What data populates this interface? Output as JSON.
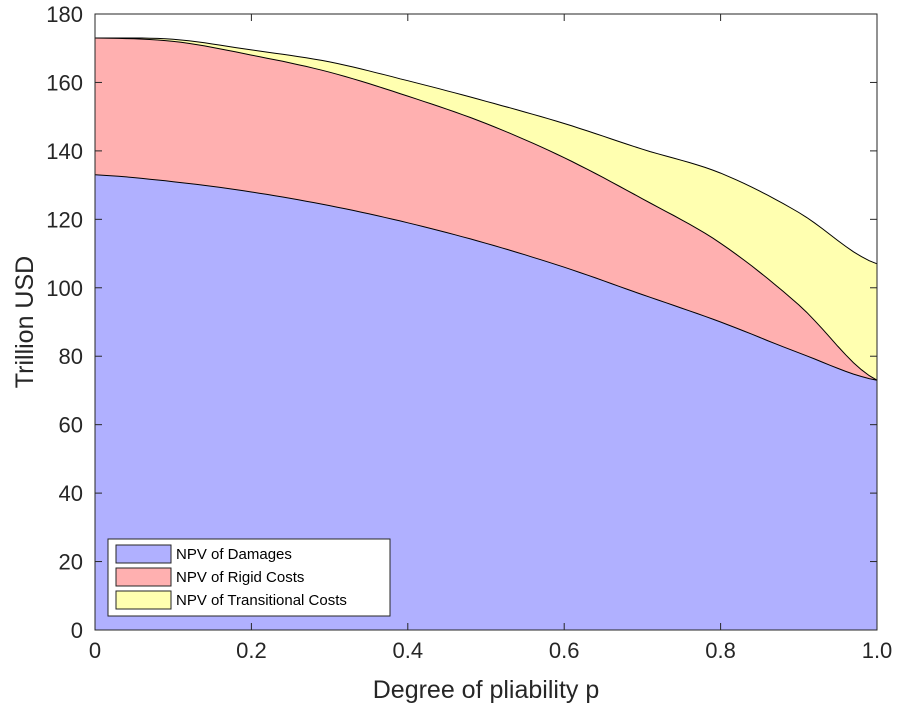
{
  "chart_data": {
    "type": "area",
    "stacked": true,
    "xlabel": "Degree of pliability p",
    "ylabel": "Trillion USD",
    "xlim": [
      0,
      1
    ],
    "ylim": [
      0,
      180
    ],
    "xticks": [
      "0",
      "0.2",
      "0.4",
      "0.6",
      "0.8",
      "1.0"
    ],
    "yticks": [
      "0",
      "20",
      "40",
      "60",
      "80",
      "100",
      "120",
      "140",
      "160",
      "180"
    ],
    "x": [
      0,
      0.1,
      0.2,
      0.3,
      0.4,
      0.5,
      0.6,
      0.7,
      0.8,
      0.9,
      1.0
    ],
    "series": [
      {
        "name": "NPV of Damages",
        "color": "#b0b0ff",
        "values": [
          133,
          131,
          128,
          124,
          119,
          113,
          106,
          98,
          90,
          81,
          73
        ]
      },
      {
        "name": "NPV of Rigid Costs",
        "color": "#ffb0b0",
        "values": [
          40,
          41,
          40,
          39,
          37,
          35,
          32,
          28,
          23,
          14,
          0
        ]
      },
      {
        "name": "NPV of Transitional Costs",
        "color": "#ffffb0",
        "values": [
          0,
          0.6,
          1.5,
          3,
          4.5,
          6.5,
          10,
          14.5,
          20.5,
          27,
          34
        ]
      }
    ],
    "legend_position": "bottom-left",
    "grid": false
  }
}
